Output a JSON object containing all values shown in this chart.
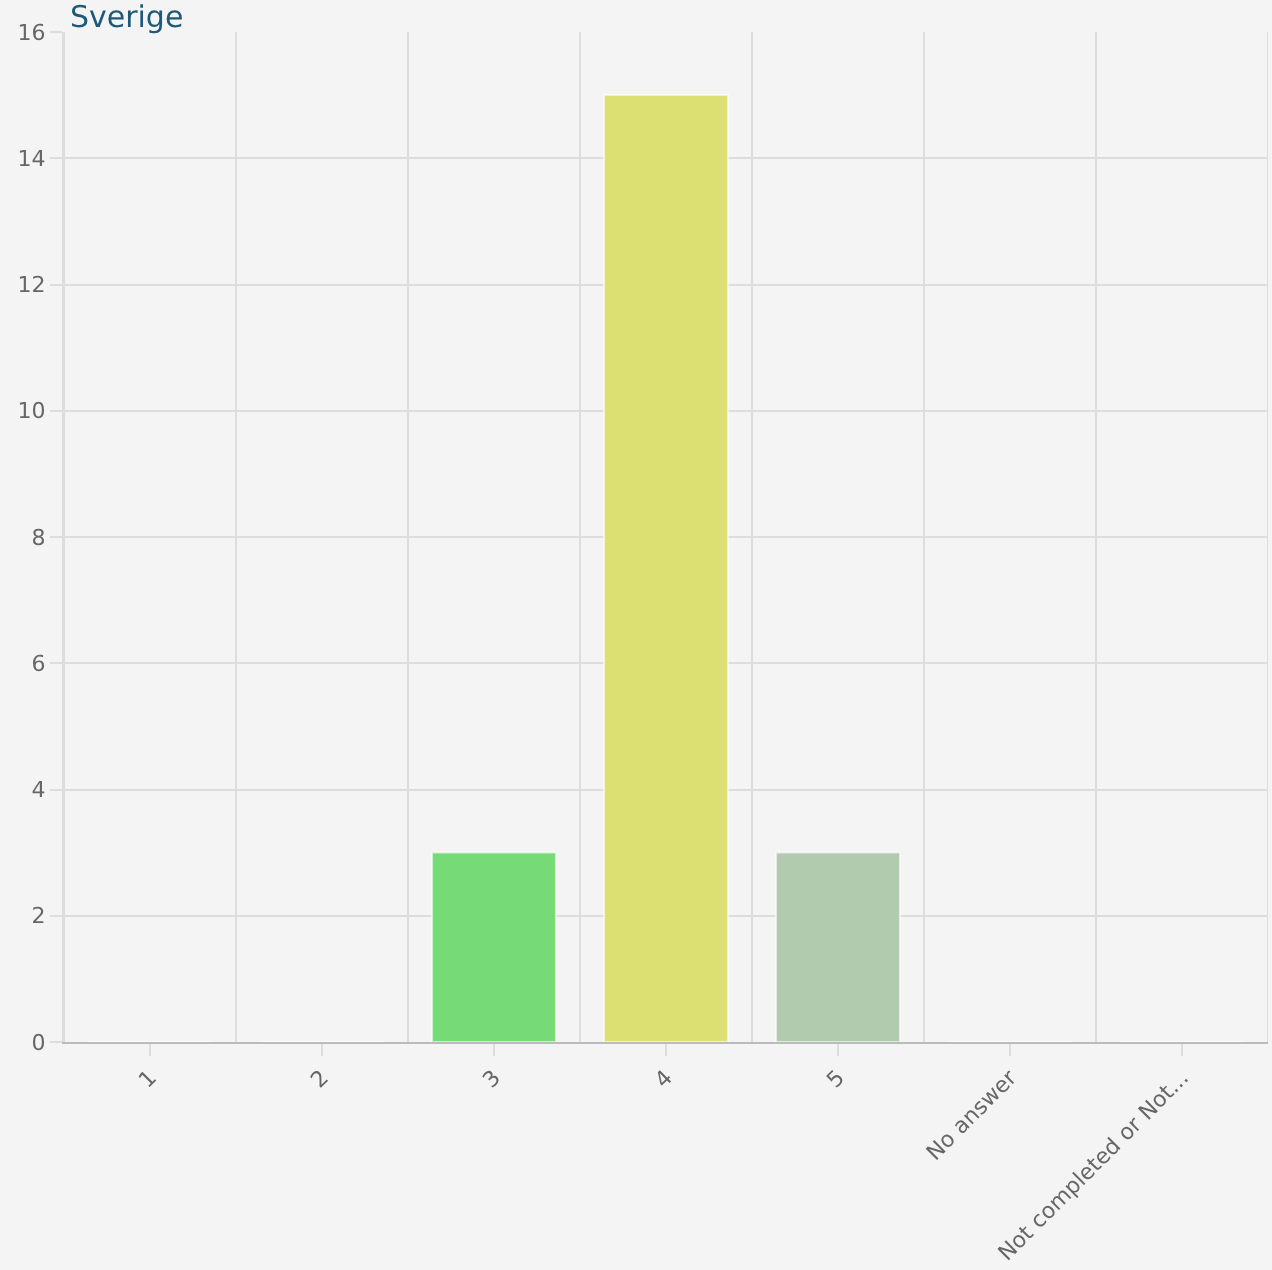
{
  "chart_data": {
    "type": "bar",
    "title": "Sverige",
    "categories": [
      "1",
      "2",
      "3",
      "4",
      "5",
      "No answer",
      "Not completed or Not..."
    ],
    "values": [
      0,
      0,
      3,
      15,
      3,
      0,
      0
    ],
    "colors": [
      null,
      null,
      "#76db76",
      "#dcdf72",
      "#b1cbaf",
      null,
      null
    ],
    "ylim": [
      0,
      16
    ],
    "yticks": [
      0,
      2,
      4,
      6,
      8,
      10,
      12,
      14,
      16
    ],
    "grid": true,
    "legend": false
  }
}
